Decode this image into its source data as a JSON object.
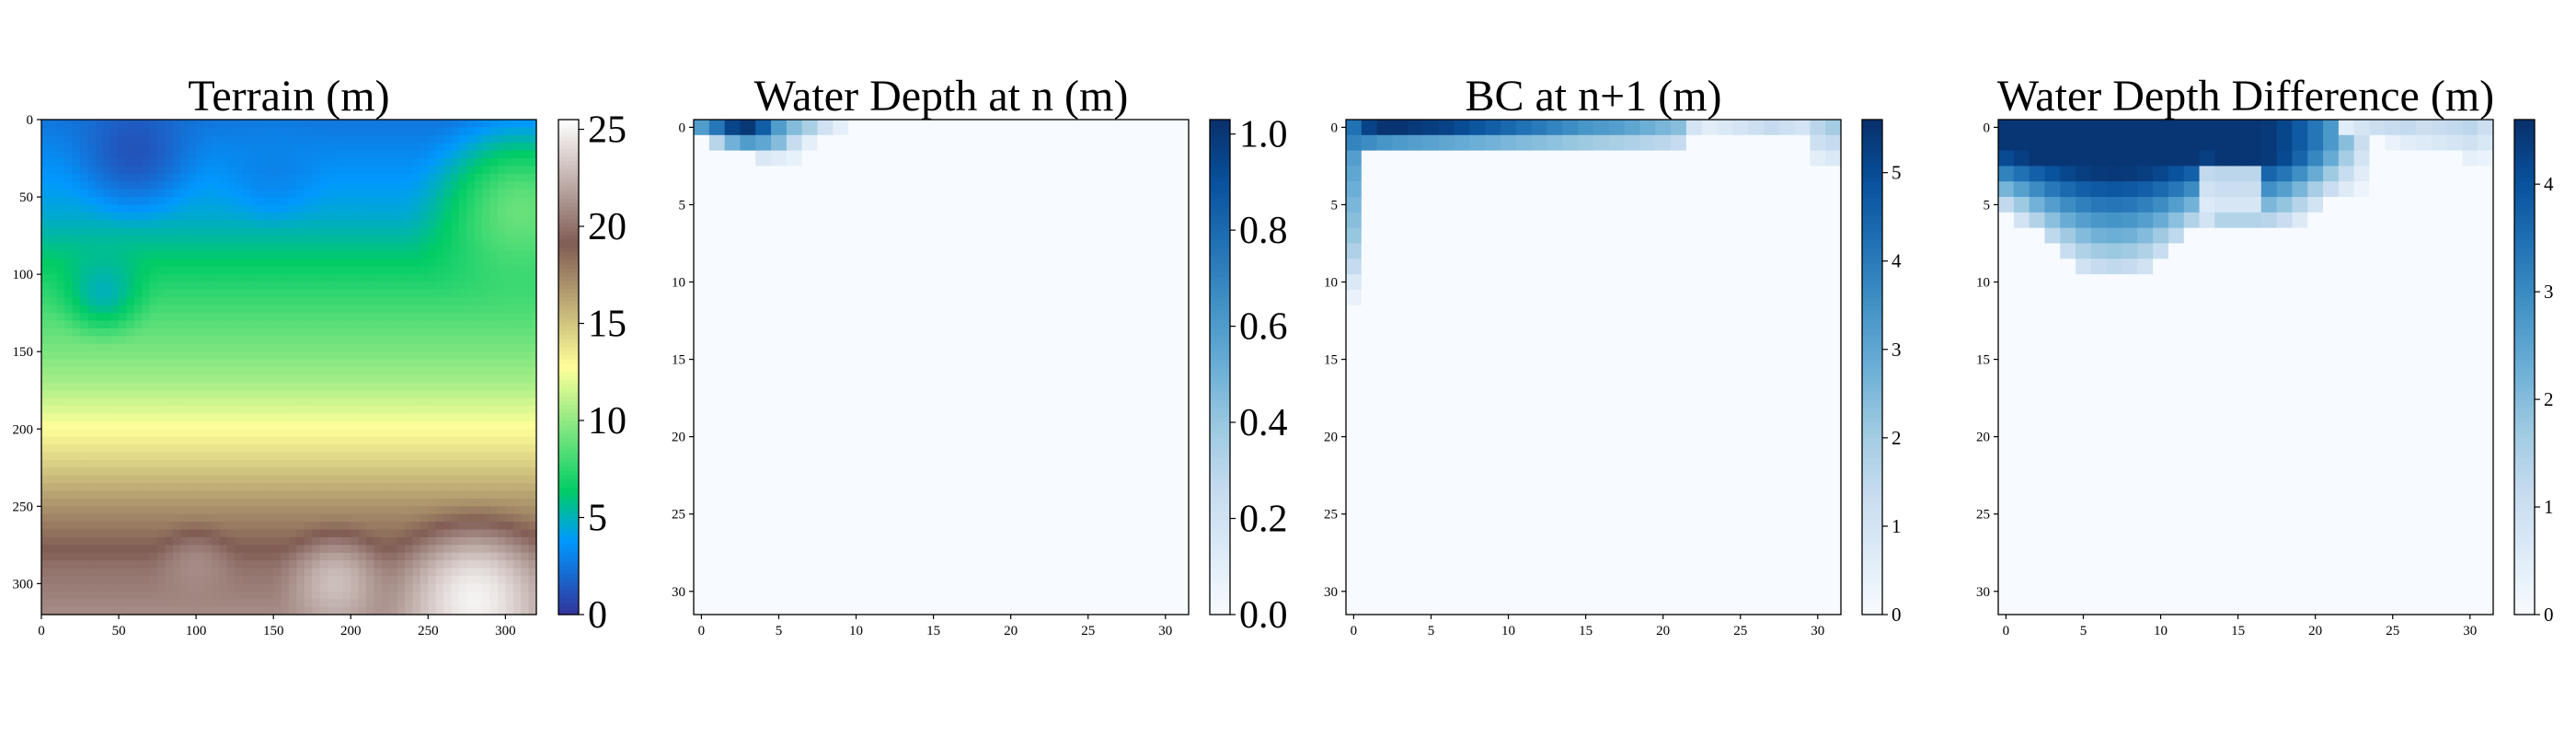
{
  "chart_data": [
    {
      "type": "heatmap",
      "title": "Terrain (m)",
      "colormap": "terrain",
      "grid_size": 320,
      "x_ticks": [
        0,
        50,
        100,
        150,
        200,
        250,
        300
      ],
      "y_ticks": [
        0,
        50,
        100,
        150,
        200,
        250,
        300
      ],
      "xlim": [
        0,
        320
      ],
      "ylim": [
        320,
        0
      ],
      "colorbar": {
        "min": 0,
        "max": 25.5,
        "ticks": [
          "0",
          "5",
          "10",
          "15",
          "20",
          "25"
        ],
        "tick_values": [
          0,
          5,
          10,
          15,
          20,
          25
        ]
      },
      "row_profile": [
        {
          "y": 0,
          "v": 2.5
        },
        {
          "y": 60,
          "v": 4.5
        },
        {
          "y": 120,
          "v": 8
        },
        {
          "y": 170,
          "v": 10.5
        },
        {
          "y": 215,
          "v": 14
        },
        {
          "y": 250,
          "v": 17
        },
        {
          "y": 290,
          "v": 20
        },
        {
          "y": 320,
          "v": 21
        }
      ],
      "features": [
        {
          "type": "low",
          "x": 60,
          "y": 20,
          "r": 55,
          "v": 1.2
        },
        {
          "type": "low",
          "x": 150,
          "y": 30,
          "r": 45,
          "v": 3
        },
        {
          "type": "low",
          "x": 40,
          "y": 110,
          "r": 40,
          "v": 5
        },
        {
          "type": "high",
          "x": 280,
          "y": 310,
          "r": 70,
          "v": 25
        },
        {
          "type": "high",
          "x": 190,
          "y": 300,
          "r": 45,
          "v": 23
        },
        {
          "type": "high",
          "x": 100,
          "y": 290,
          "r": 35,
          "v": 21
        },
        {
          "type": "low",
          "x": 310,
          "y": 60,
          "r": 80,
          "v": 9
        }
      ]
    },
    {
      "type": "heatmap",
      "title": "Water Depth at n (m)",
      "colormap": "Blues",
      "grid_size": 32,
      "x_ticks": [
        0,
        5,
        10,
        15,
        20,
        25,
        30
      ],
      "y_ticks": [
        0,
        5,
        10,
        15,
        20,
        25,
        30
      ],
      "colorbar": {
        "min": 0,
        "max": 1.03,
        "ticks": [
          "0.0",
          "0.2",
          "0.4",
          "0.6",
          "0.8",
          "1.0"
        ],
        "tick_values": [
          0,
          0.2,
          0.4,
          0.6,
          0.8,
          1.0
        ]
      },
      "cells": [
        [
          0,
          0,
          0.6
        ],
        [
          1,
          0,
          0.75
        ],
        [
          2,
          0,
          0.95
        ],
        [
          3,
          0,
          1.0
        ],
        [
          4,
          0,
          0.85
        ],
        [
          5,
          0,
          0.6
        ],
        [
          6,
          0,
          0.45
        ],
        [
          7,
          0,
          0.35
        ],
        [
          8,
          0,
          0.2
        ],
        [
          9,
          0,
          0.1
        ],
        [
          1,
          1,
          0.3
        ],
        [
          2,
          1,
          0.5
        ],
        [
          3,
          1,
          0.6
        ],
        [
          4,
          1,
          0.55
        ],
        [
          5,
          1,
          0.45
        ],
        [
          6,
          1,
          0.25
        ],
        [
          7,
          1,
          0.1
        ],
        [
          4,
          2,
          0.15
        ],
        [
          5,
          2,
          0.12
        ],
        [
          6,
          2,
          0.08
        ]
      ]
    },
    {
      "type": "heatmap",
      "title": "BC at n+1 (m)",
      "colormap": "Blues",
      "grid_size": 32,
      "x_ticks": [
        0,
        5,
        10,
        15,
        20,
        25,
        30
      ],
      "y_ticks": [
        0,
        5,
        10,
        15,
        20,
        25,
        30
      ],
      "colorbar": {
        "min": 0,
        "max": 5.6,
        "ticks": [
          "0",
          "1",
          "2",
          "3",
          "4",
          "5"
        ],
        "tick_values": [
          0,
          1,
          2,
          3,
          4,
          5
        ]
      },
      "top_rows": [
        [
          4.2,
          5.2,
          5.5,
          5.5,
          5.4,
          5.3,
          5.2,
          5.0,
          4.8,
          4.6,
          4.4,
          4.2,
          4.0,
          3.8,
          3.6,
          3.4,
          3.3,
          3.2,
          3.0,
          2.8,
          2.6,
          2.4,
          1.0,
          0.6,
          0.8,
          1.0,
          1.2,
          1.4,
          1.2,
          1.0,
          1.6,
          2.0
        ],
        [
          3.8,
          3.6,
          3.4,
          3.3,
          3.2,
          3.1,
          3.0,
          2.9,
          2.8,
          2.7,
          2.6,
          2.5,
          2.4,
          2.3,
          2.2,
          2.1,
          2.0,
          1.9,
          1.8,
          1.7,
          1.6,
          1.4,
          0,
          0,
          0,
          0,
          0,
          0,
          0,
          0,
          1.2,
          1.4
        ]
      ],
      "left_edge": [
        3.4,
        3.2,
        3.0,
        2.8,
        2.6,
        2.4,
        2.2,
        1.8,
        1.4,
        0.8,
        0.4
      ],
      "right_edge_row2": [
        0.6,
        0.8
      ]
    },
    {
      "type": "heatmap",
      "title": "Water Depth Difference (m)",
      "colormap": "Blues",
      "grid_size": 32,
      "x_ticks": [
        0,
        5,
        10,
        15,
        20,
        25,
        30
      ],
      "y_ticks": [
        0,
        5,
        10,
        15,
        20,
        25,
        30
      ],
      "colorbar": {
        "min": 0,
        "max": 4.6,
        "ticks": [
          "0",
          "1",
          "2",
          "3",
          "4"
        ],
        "tick_values": [
          0,
          1,
          2,
          3,
          4
        ]
      },
      "blob_top": 4.5,
      "right_tail": [
        [
          22,
          0,
          0.5
        ],
        [
          23,
          0,
          0.8
        ],
        [
          24,
          0,
          1.0
        ],
        [
          25,
          0,
          1.1
        ],
        [
          26,
          0,
          1.2
        ],
        [
          27,
          0,
          1.0
        ],
        [
          28,
          0,
          1.1
        ],
        [
          29,
          0,
          1.2
        ],
        [
          30,
          0,
          1.3
        ],
        [
          31,
          0,
          1.0
        ],
        [
          25,
          1,
          0.3
        ],
        [
          26,
          1,
          0.5
        ],
        [
          27,
          1,
          0.6
        ],
        [
          28,
          1,
          0.7
        ],
        [
          29,
          1,
          0.8
        ],
        [
          30,
          1,
          0.9
        ],
        [
          31,
          1,
          0.7
        ],
        [
          30,
          2,
          0.4
        ],
        [
          31,
          2,
          0.3
        ]
      ]
    }
  ]
}
